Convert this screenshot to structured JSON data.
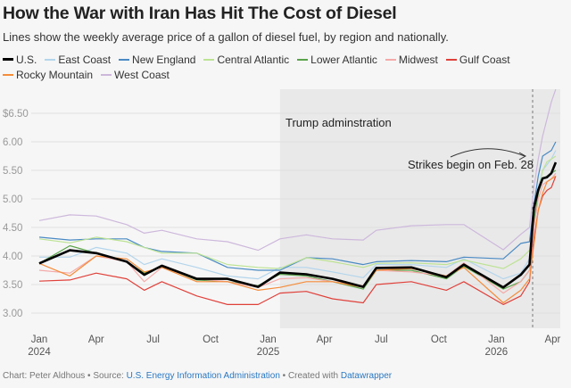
{
  "header": {
    "title": "How the War with Iran Has Hit The Cost of Diesel",
    "subtitle": "Lines show the weekly average price of a gallon of diesel fuel, by region and nationally."
  },
  "footer": {
    "chart_prefix": "Chart: Peter Aldhous • Source: ",
    "source_link": "U.S. Energy Information Administration",
    "created_prefix": " • Created with ",
    "tool_link": "Datawrapper"
  },
  "chart_data": {
    "type": "line",
    "title": "How the War with Iran Has Hit The Cost of Diesel",
    "xlabel": "",
    "ylabel": "",
    "ylim": [
      2.75,
      6.92
    ],
    "y_ticks": [
      {
        "value": 6.5,
        "label": "$6.50"
      },
      {
        "value": 6.0,
        "label": "6.00"
      },
      {
        "value": 5.5,
        "label": "5.50"
      },
      {
        "value": 5.0,
        "label": "5.00"
      },
      {
        "value": 4.5,
        "label": "4.50"
      },
      {
        "value": 4.0,
        "label": "4.00"
      },
      {
        "value": 3.5,
        "label": "3.50"
      },
      {
        "value": 3.0,
        "label": "3.00"
      }
    ],
    "x_ticks": [
      {
        "date": "2024-01-01",
        "label": "Jan",
        "year": "2024"
      },
      {
        "date": "2024-04-01",
        "label": "Apr",
        "year": ""
      },
      {
        "date": "2024-07-01",
        "label": "Jul",
        "year": ""
      },
      {
        "date": "2024-10-01",
        "label": "Oct",
        "year": ""
      },
      {
        "date": "2025-01-01",
        "label": "Jan",
        "year": "2025"
      },
      {
        "date": "2025-04-01",
        "label": "Apr",
        "year": ""
      },
      {
        "date": "2025-07-01",
        "label": "Jul",
        "year": ""
      },
      {
        "date": "2025-10-01",
        "label": "Oct",
        "year": ""
      },
      {
        "date": "2026-01-01",
        "label": "Jan",
        "year": "2026"
      },
      {
        "date": "2026-04-01",
        "label": "Apr",
        "year": ""
      }
    ],
    "grid": true,
    "legend_placement": "top",
    "shaded_range": {
      "start": "2025-01-20",
      "label": "Trump adminstration"
    },
    "event_line": {
      "date": "2026-02-28",
      "label": "Strikes begin on Feb. 28"
    },
    "dates": [
      "2024-01-01",
      "2024-02-19",
      "2024-04-01",
      "2024-05-20",
      "2024-06-17",
      "2024-07-15",
      "2024-09-09",
      "2024-10-28",
      "2024-12-16",
      "2025-01-20",
      "2025-03-03",
      "2025-04-14",
      "2025-06-02",
      "2025-06-23",
      "2025-08-18",
      "2025-10-13",
      "2025-11-10",
      "2026-01-12",
      "2026-02-09",
      "2026-02-23",
      "2026-03-02",
      "2026-03-09",
      "2026-03-16",
      "2026-03-23",
      "2026-03-30",
      "2026-04-06"
    ],
    "series": [
      {
        "name": "East Coast",
        "color": "#b3d5ec",
        "values": [
          3.98,
          3.98,
          4.15,
          4.05,
          3.85,
          3.95,
          3.8,
          3.65,
          3.6,
          3.8,
          3.8,
          3.72,
          3.62,
          3.85,
          3.85,
          3.8,
          3.95,
          3.6,
          3.7,
          3.95,
          4.7,
          5.2,
          5.5,
          5.6,
          5.7,
          5.85
        ]
      },
      {
        "name": "New England",
        "color": "#4a8ac4",
        "values": [
          4.33,
          4.28,
          4.3,
          4.3,
          4.15,
          4.08,
          4.05,
          3.8,
          3.75,
          3.75,
          3.97,
          3.95,
          3.85,
          3.9,
          3.92,
          3.9,
          3.98,
          3.95,
          4.22,
          4.25,
          4.9,
          5.4,
          5.75,
          5.8,
          5.85,
          6.0
        ]
      },
      {
        "name": "Central Atlantic",
        "color": "#bde394",
        "values": [
          4.3,
          4.23,
          4.33,
          4.25,
          4.15,
          4.05,
          4.05,
          3.85,
          3.8,
          3.78,
          3.97,
          3.9,
          3.8,
          3.87,
          3.88,
          3.85,
          3.93,
          3.78,
          3.95,
          4.1,
          4.6,
          5.1,
          5.5,
          5.65,
          5.7,
          5.75
        ]
      },
      {
        "name": "Lower Atlantic",
        "color": "#5aa34a",
        "values": [
          3.87,
          4.18,
          4.05,
          3.9,
          3.7,
          3.82,
          3.58,
          3.55,
          3.48,
          3.68,
          3.65,
          3.55,
          3.42,
          3.75,
          3.75,
          3.6,
          3.82,
          3.42,
          3.55,
          3.75,
          4.6,
          5.1,
          5.35,
          5.4,
          5.45,
          5.5
        ]
      },
      {
        "name": "Midwest",
        "color": "#f4aaa8",
        "values": [
          3.75,
          3.7,
          4.0,
          3.9,
          3.55,
          3.8,
          3.6,
          3.55,
          3.45,
          3.6,
          3.62,
          3.55,
          3.48,
          3.75,
          3.72,
          3.65,
          3.88,
          3.35,
          3.55,
          3.75,
          4.5,
          5.0,
          5.25,
          5.3,
          5.35,
          5.45
        ]
      },
      {
        "name": "Gulf Coast",
        "color": "#e0403a",
        "values": [
          3.56,
          3.58,
          3.7,
          3.6,
          3.4,
          3.55,
          3.3,
          3.15,
          3.15,
          3.35,
          3.38,
          3.25,
          3.18,
          3.5,
          3.55,
          3.4,
          3.55,
          3.15,
          3.3,
          3.55,
          4.3,
          4.8,
          5.05,
          5.15,
          5.2,
          5.4
        ]
      },
      {
        "name": "Rocky Mountain",
        "color": "#f58c3a",
        "values": [
          3.87,
          3.65,
          4.0,
          3.95,
          3.72,
          3.8,
          3.55,
          3.55,
          3.4,
          3.45,
          3.55,
          3.55,
          3.45,
          3.75,
          3.78,
          3.65,
          3.8,
          3.18,
          3.4,
          3.6,
          4.2,
          4.8,
          5.1,
          5.3,
          5.35,
          5.4
        ]
      },
      {
        "name": "West Coast",
        "color": "#cdb8dc",
        "values": [
          4.62,
          4.72,
          4.7,
          4.55,
          4.4,
          4.45,
          4.3,
          4.25,
          4.1,
          4.3,
          4.37,
          4.3,
          4.28,
          4.45,
          4.53,
          4.55,
          4.55,
          4.11,
          4.38,
          4.5,
          5.2,
          5.7,
          6.1,
          6.4,
          6.7,
          6.92
        ]
      },
      {
        "name": "U.S.",
        "color": "#000000",
        "values": [
          3.87,
          4.1,
          4.05,
          3.9,
          3.67,
          3.83,
          3.6,
          3.6,
          3.46,
          3.71,
          3.68,
          3.6,
          3.46,
          3.79,
          3.8,
          3.63,
          3.85,
          3.45,
          3.67,
          3.85,
          4.84,
          5.16,
          5.36,
          5.38,
          5.45,
          5.64
        ]
      }
    ],
    "legend_order": [
      "U.S.",
      "East Coast",
      "New England",
      "Central Atlantic",
      "Lower Atlantic",
      "Midwest",
      "Gulf Coast",
      "Rocky Mountain",
      "West Coast"
    ]
  }
}
